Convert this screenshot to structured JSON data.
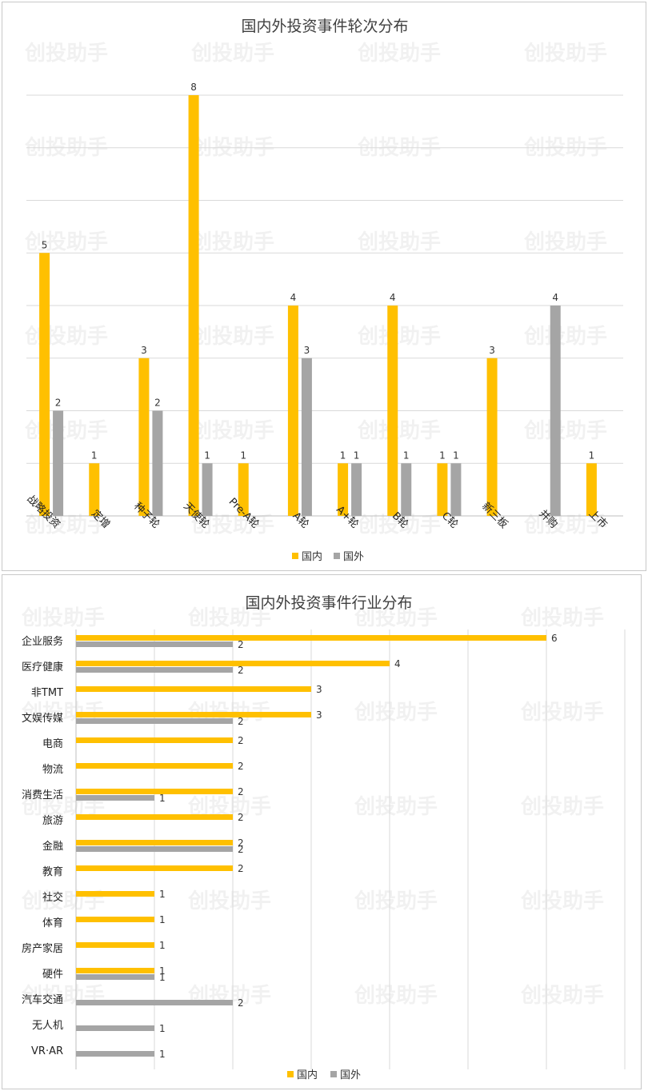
{
  "colors": {
    "domestic": "#FFC000",
    "foreign": "#A5A5A5",
    "grid": "#D9D9D9",
    "axis": "#BFBFBF"
  },
  "watermark": "创投助手",
  "chart_data": [
    {
      "type": "bar",
      "orientation": "vertical",
      "title": "国内外投资事件轮次分布",
      "categories": [
        "战略投资",
        "定增",
        "种子轮",
        "天使轮",
        "Pre-A轮",
        "A轮",
        "A+轮",
        "B轮",
        "C轮",
        "新三板",
        "并购",
        "上市"
      ],
      "series": [
        {
          "name": "国内",
          "values": [
            5,
            1,
            3,
            8,
            1,
            4,
            1,
            4,
            1,
            3,
            null,
            1
          ]
        },
        {
          "name": "国外",
          "values": [
            2,
            null,
            2,
            1,
            null,
            3,
            1,
            1,
            1,
            null,
            4,
            null
          ]
        }
      ],
      "ylim": [
        0,
        8
      ],
      "grid": true,
      "legend": "bottom"
    },
    {
      "type": "bar",
      "orientation": "horizontal",
      "title": "国内外投资事件行业分布",
      "categories": [
        "企业服务",
        "医疗健康",
        "非TMT",
        "文娱传媒",
        "电商",
        "物流",
        "消费生活",
        "旅游",
        "金融",
        "教育",
        "社交",
        "体育",
        "房产家居",
        "硬件",
        "汽车交通",
        "无人机",
        "VR·AR"
      ],
      "series": [
        {
          "name": "国内",
          "values": [
            6,
            4,
            3,
            3,
            2,
            2,
            2,
            2,
            2,
            2,
            1,
            1,
            1,
            1,
            null,
            null,
            null
          ]
        },
        {
          "name": "国外",
          "values": [
            2,
            2,
            null,
            2,
            null,
            null,
            1,
            null,
            2,
            null,
            null,
            null,
            null,
            1,
            2,
            1,
            1
          ]
        }
      ],
      "xlim": [
        0,
        7
      ],
      "grid": true,
      "legend": "bottom"
    }
  ]
}
